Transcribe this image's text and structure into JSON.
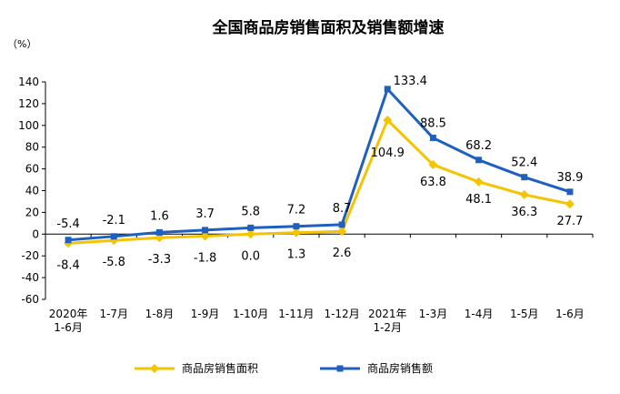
{
  "chart_data": {
    "type": "line",
    "title": "全国商品房销售面积及销售额增速",
    "ylabel": "（%）",
    "xlabel": "",
    "ylim": [
      -60,
      140
    ],
    "yticks": [
      -60,
      -40,
      -20,
      0,
      20,
      40,
      60,
      80,
      100,
      120,
      140
    ],
    "grid": false,
    "legend": "bottom",
    "categories": [
      {
        "line1": "2020年",
        "line2": "1-6月"
      },
      {
        "line1": "1-7月",
        "line2": ""
      },
      {
        "line1": "1-8月",
        "line2": ""
      },
      {
        "line1": "1-9月",
        "line2": ""
      },
      {
        "line1": "1-10月",
        "line2": ""
      },
      {
        "line1": "1-11月",
        "line2": ""
      },
      {
        "line1": "1-12月",
        "line2": ""
      },
      {
        "line1": "2021年",
        "line2": "1-2月"
      },
      {
        "line1": "1-3月",
        "line2": ""
      },
      {
        "line1": "1-4月",
        "line2": ""
      },
      {
        "line1": "1-5月",
        "line2": ""
      },
      {
        "line1": "1-6月",
        "line2": ""
      }
    ],
    "series": [
      {
        "name": "商品房销售面积",
        "color": "#f5c400",
        "marker": "diamond",
        "values": [
          -8.4,
          -5.8,
          -3.3,
          -1.8,
          0.0,
          1.3,
          2.6,
          104.9,
          63.8,
          48.1,
          36.3,
          27.7
        ],
        "labels": [
          "-8.4",
          "-5.8",
          "-3.3",
          "-1.8",
          "0.0",
          "1.3",
          "2.6",
          "104.9",
          "63.8",
          "48.1",
          "36.3",
          "27.7"
        ]
      },
      {
        "name": "商品房销售额",
        "color": "#1f5fbf",
        "marker": "square",
        "values": [
          -5.4,
          -2.1,
          1.6,
          3.7,
          5.8,
          7.2,
          8.7,
          133.4,
          88.5,
          68.2,
          52.4,
          38.9
        ],
        "labels": [
          "-5.4",
          "-2.1",
          "1.6",
          "3.7",
          "5.8",
          "7.2",
          "8.7",
          "133.4",
          "88.5",
          "68.2",
          "52.4",
          "38.9"
        ]
      }
    ]
  }
}
